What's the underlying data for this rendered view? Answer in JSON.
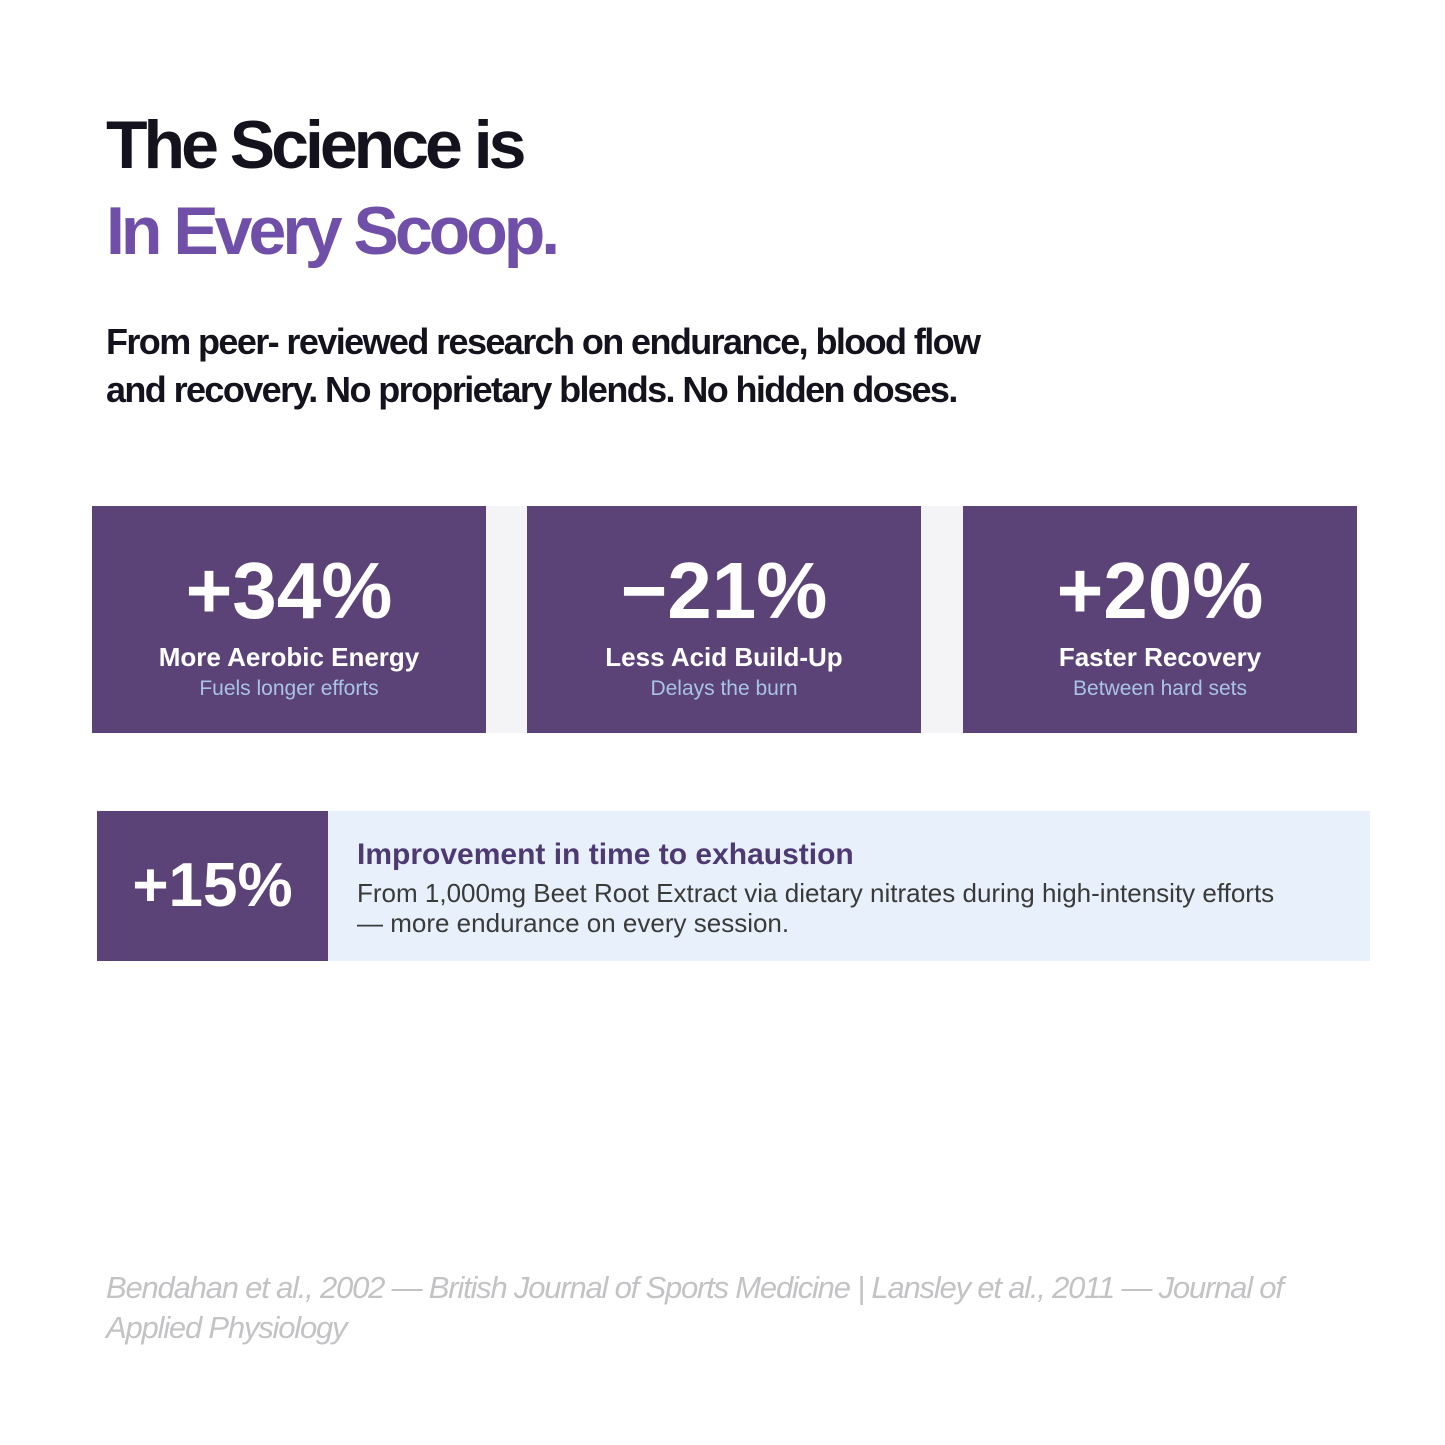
{
  "headline": {
    "line1": "The Science is",
    "line2": "In Every Scoop."
  },
  "subhead": {
    "line1": "From peer- reviewed research on endurance, blood flow",
    "line2": "and recovery. No proprietary blends. No hidden doses."
  },
  "stats": [
    {
      "value": "+34%",
      "label": "More Aerobic Energy",
      "sub": "Fuels longer efforts"
    },
    {
      "value": "−21%",
      "label": "Less Acid Build-Up",
      "sub": "Delays the burn"
    },
    {
      "value": "+20%",
      "label": "Faster Recovery",
      "sub": "Between hard sets"
    }
  ],
  "callout": {
    "value": "+15%",
    "title": "Improvement in time to exhaustion",
    "body_line1": "From 1,000mg Beet Root Extract via dietary nitrates during high-intensity efforts",
    "body_line2": "— more endurance on every session."
  },
  "citation": "Bendahan et al., 2002 — British Journal of Sports Medicine  |  Lansley et al., 2011 — Journal of Applied Physiology",
  "colors": {
    "accent_purple": "#6f4fa8",
    "card_purple": "#5b4377",
    "callout_bg": "#e8f1fb",
    "sub_text_blue": "#a9c3e6"
  }
}
